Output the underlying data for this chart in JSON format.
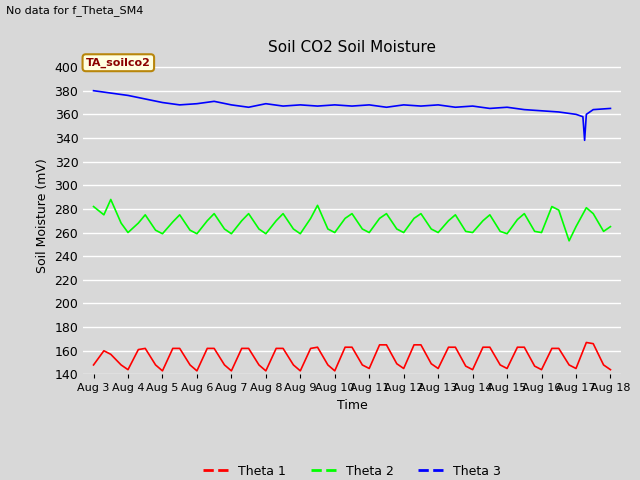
{
  "title": "Soil CO2 Soil Moisture",
  "no_data_text": "No data for f_Theta_SM4",
  "box_label": "TA_soilco2",
  "ylabel": "Soil Moisture (mV)",
  "xlabel": "Time",
  "ylim": [
    140,
    408
  ],
  "yticks": [
    140,
    160,
    180,
    200,
    220,
    240,
    260,
    280,
    300,
    320,
    340,
    360,
    380,
    400
  ],
  "bg_color": "#d8d8d8",
  "fig_color": "#d8d8d8",
  "legend": [
    {
      "label": "Theta 1",
      "color": "red"
    },
    {
      "label": "Theta 2",
      "color": "lime"
    },
    {
      "label": "Theta 3",
      "color": "blue"
    }
  ],
  "theta1": {
    "color": "red",
    "x": [
      0,
      0.3,
      0.5,
      0.8,
      1.0,
      1.3,
      1.5,
      1.8,
      2.0,
      2.3,
      2.5,
      2.8,
      3.0,
      3.3,
      3.5,
      3.8,
      4.0,
      4.3,
      4.5,
      4.8,
      5.0,
      5.3,
      5.5,
      5.8,
      6.0,
      6.3,
      6.5,
      6.8,
      7.0,
      7.3,
      7.5,
      7.8,
      8.0,
      8.3,
      8.5,
      8.8,
      9.0,
      9.3,
      9.5,
      9.8,
      10.0,
      10.3,
      10.5,
      10.8,
      11.0,
      11.3,
      11.5,
      11.8,
      12.0,
      12.3,
      12.5,
      12.8,
      13.0,
      13.3,
      13.5,
      13.8,
      14.0,
      14.3,
      14.5,
      14.8,
      15.0
    ],
    "y": [
      148,
      160,
      157,
      148,
      144,
      161,
      162,
      148,
      143,
      162,
      162,
      148,
      143,
      162,
      162,
      148,
      143,
      162,
      162,
      148,
      143,
      162,
      162,
      148,
      143,
      162,
      163,
      148,
      143,
      163,
      163,
      148,
      145,
      165,
      165,
      149,
      145,
      165,
      165,
      149,
      145,
      163,
      163,
      147,
      144,
      163,
      163,
      148,
      145,
      163,
      163,
      147,
      144,
      162,
      162,
      148,
      145,
      167,
      166,
      148,
      144
    ]
  },
  "theta2": {
    "color": "lime",
    "x": [
      0,
      0.3,
      0.5,
      0.8,
      1.0,
      1.3,
      1.5,
      1.8,
      2.0,
      2.3,
      2.5,
      2.8,
      3.0,
      3.3,
      3.5,
      3.8,
      4.0,
      4.3,
      4.5,
      4.8,
      5.0,
      5.3,
      5.5,
      5.8,
      6.0,
      6.3,
      6.5,
      6.8,
      7.0,
      7.3,
      7.5,
      7.8,
      8.0,
      8.3,
      8.5,
      8.8,
      9.0,
      9.3,
      9.5,
      9.8,
      10.0,
      10.3,
      10.5,
      10.8,
      11.0,
      11.3,
      11.5,
      11.8,
      12.0,
      12.3,
      12.5,
      12.8,
      13.0,
      13.3,
      13.5,
      13.8,
      14.0,
      14.3,
      14.5,
      14.8,
      15.0
    ],
    "y": [
      282,
      275,
      288,
      268,
      260,
      268,
      275,
      262,
      259,
      269,
      275,
      262,
      259,
      270,
      276,
      263,
      259,
      270,
      276,
      263,
      259,
      270,
      276,
      263,
      259,
      272,
      283,
      263,
      260,
      272,
      276,
      263,
      260,
      272,
      276,
      263,
      260,
      272,
      276,
      263,
      260,
      270,
      275,
      261,
      260,
      270,
      275,
      261,
      259,
      271,
      276,
      261,
      260,
      282,
      279,
      253,
      265,
      281,
      276,
      261,
      265
    ]
  },
  "theta3": {
    "color": "blue",
    "x": [
      0,
      0.5,
      1.0,
      1.5,
      2.0,
      2.5,
      3.0,
      3.5,
      4.0,
      4.5,
      5.0,
      5.5,
      6.0,
      6.5,
      7.0,
      7.5,
      8.0,
      8.5,
      9.0,
      9.5,
      10.0,
      10.5,
      11.0,
      11.5,
      12.0,
      12.5,
      13.0,
      13.5,
      14.0,
      14.2,
      14.25,
      14.3,
      14.5,
      15.0
    ],
    "y": [
      380,
      378,
      376,
      373,
      370,
      368,
      369,
      371,
      368,
      366,
      369,
      367,
      368,
      367,
      368,
      367,
      368,
      366,
      368,
      367,
      368,
      366,
      367,
      365,
      366,
      364,
      363,
      362,
      360,
      358,
      338,
      360,
      364,
      365
    ]
  },
  "xticklabels": [
    "Aug 3",
    "Aug 4",
    "Aug 5",
    "Aug 6",
    "Aug 7",
    "Aug 8",
    "Aug 9",
    "Aug 10",
    "Aug 11",
    "Aug 12",
    "Aug 13",
    "Aug 14",
    "Aug 15",
    "Aug 16",
    "Aug 17",
    "Aug 18"
  ],
  "xtick_positions": [
    0,
    1,
    2,
    3,
    4,
    5,
    6,
    7,
    8,
    9,
    10,
    11,
    12,
    13,
    14,
    15
  ]
}
